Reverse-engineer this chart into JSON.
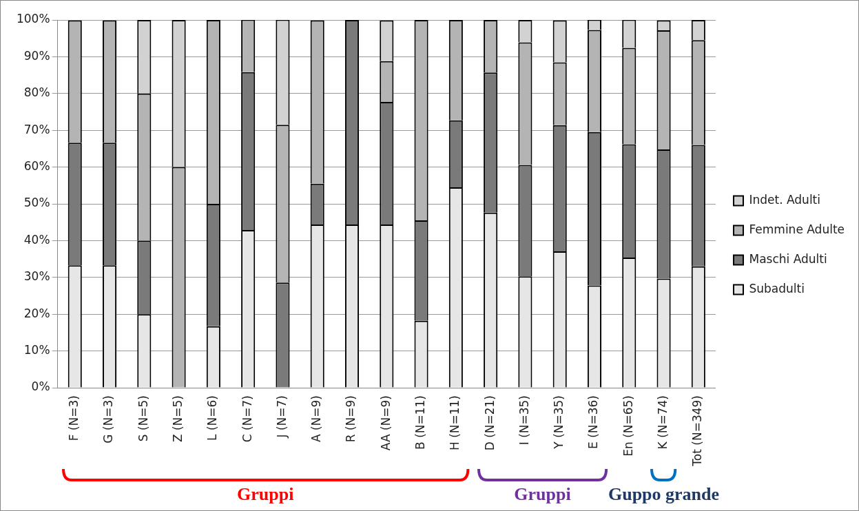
{
  "chart_data": {
    "type": "bar",
    "stacked": true,
    "categories": [
      "F (N=3)",
      "G (N=3)",
      "S (N=5)",
      "Z (N=5)",
      "L (N=6)",
      "C (N=7)",
      "J (N=7)",
      "A (N=9)",
      "R (N=9)",
      "AA (N=9)",
      "B (N=11)",
      "H (N=11)",
      "D (N=21)",
      "I (N=35)",
      "Y (N=35)",
      "E (N=36)",
      "En (N=65)",
      "K (N=74)",
      "Tot (N=349)"
    ],
    "series": [
      {
        "name": "Subadulti",
        "color": "#e6e6e6",
        "values": [
          33.3,
          33.3,
          20,
          0,
          16.7,
          42.9,
          0,
          44.4,
          44.4,
          44.4,
          18.2,
          54.5,
          47.6,
          30.3,
          37.1,
          27.8,
          35.4,
          29.7,
          33.0
        ]
      },
      {
        "name": "Maschi Adulti",
        "color": "#7a7a7a",
        "values": [
          33.3,
          33.3,
          20,
          0,
          33.3,
          42.9,
          28.6,
          11.1,
          55.6,
          33.3,
          27.3,
          18.2,
          38.1,
          30.3,
          34.3,
          41.7,
          30.8,
          35.1,
          33.0
        ]
      },
      {
        "name": "Femmine Adulte",
        "color": "#b4b4b4",
        "values": [
          33.3,
          33.3,
          40,
          60,
          50,
          14.3,
          42.9,
          44.4,
          0,
          11.1,
          54.5,
          27.3,
          14.3,
          33.3,
          17.1,
          27.8,
          26.2,
          32.4,
          28.5
        ]
      },
      {
        "name": "Indet. Adulti",
        "color": "#d2d2d2",
        "values": [
          0,
          0,
          20,
          40,
          0,
          0,
          28.6,
          0,
          0,
          11.1,
          0,
          0,
          0,
          6.1,
          11.4,
          2.8,
          7.7,
          2.7,
          5.5
        ]
      }
    ],
    "ylim": [
      0,
      100
    ],
    "yticks": [
      {
        "value": 0,
        "label": "0%"
      },
      {
        "value": 10,
        "label": "10%"
      },
      {
        "value": 20,
        "label": "20%"
      },
      {
        "value": 30,
        "label": "30%"
      },
      {
        "value": 40,
        "label": "40%"
      },
      {
        "value": 50,
        "label": "50%"
      },
      {
        "value": 60,
        "label": "60%"
      },
      {
        "value": 70,
        "label": "70%"
      },
      {
        "value": 80,
        "label": "80%"
      },
      {
        "value": 90,
        "label": "90%"
      },
      {
        "value": 100,
        "label": "100%"
      }
    ],
    "grid": "y",
    "legend": "right",
    "annotations": [
      "Gruppi",
      "Gruppi",
      "Guppo grande"
    ]
  }
}
